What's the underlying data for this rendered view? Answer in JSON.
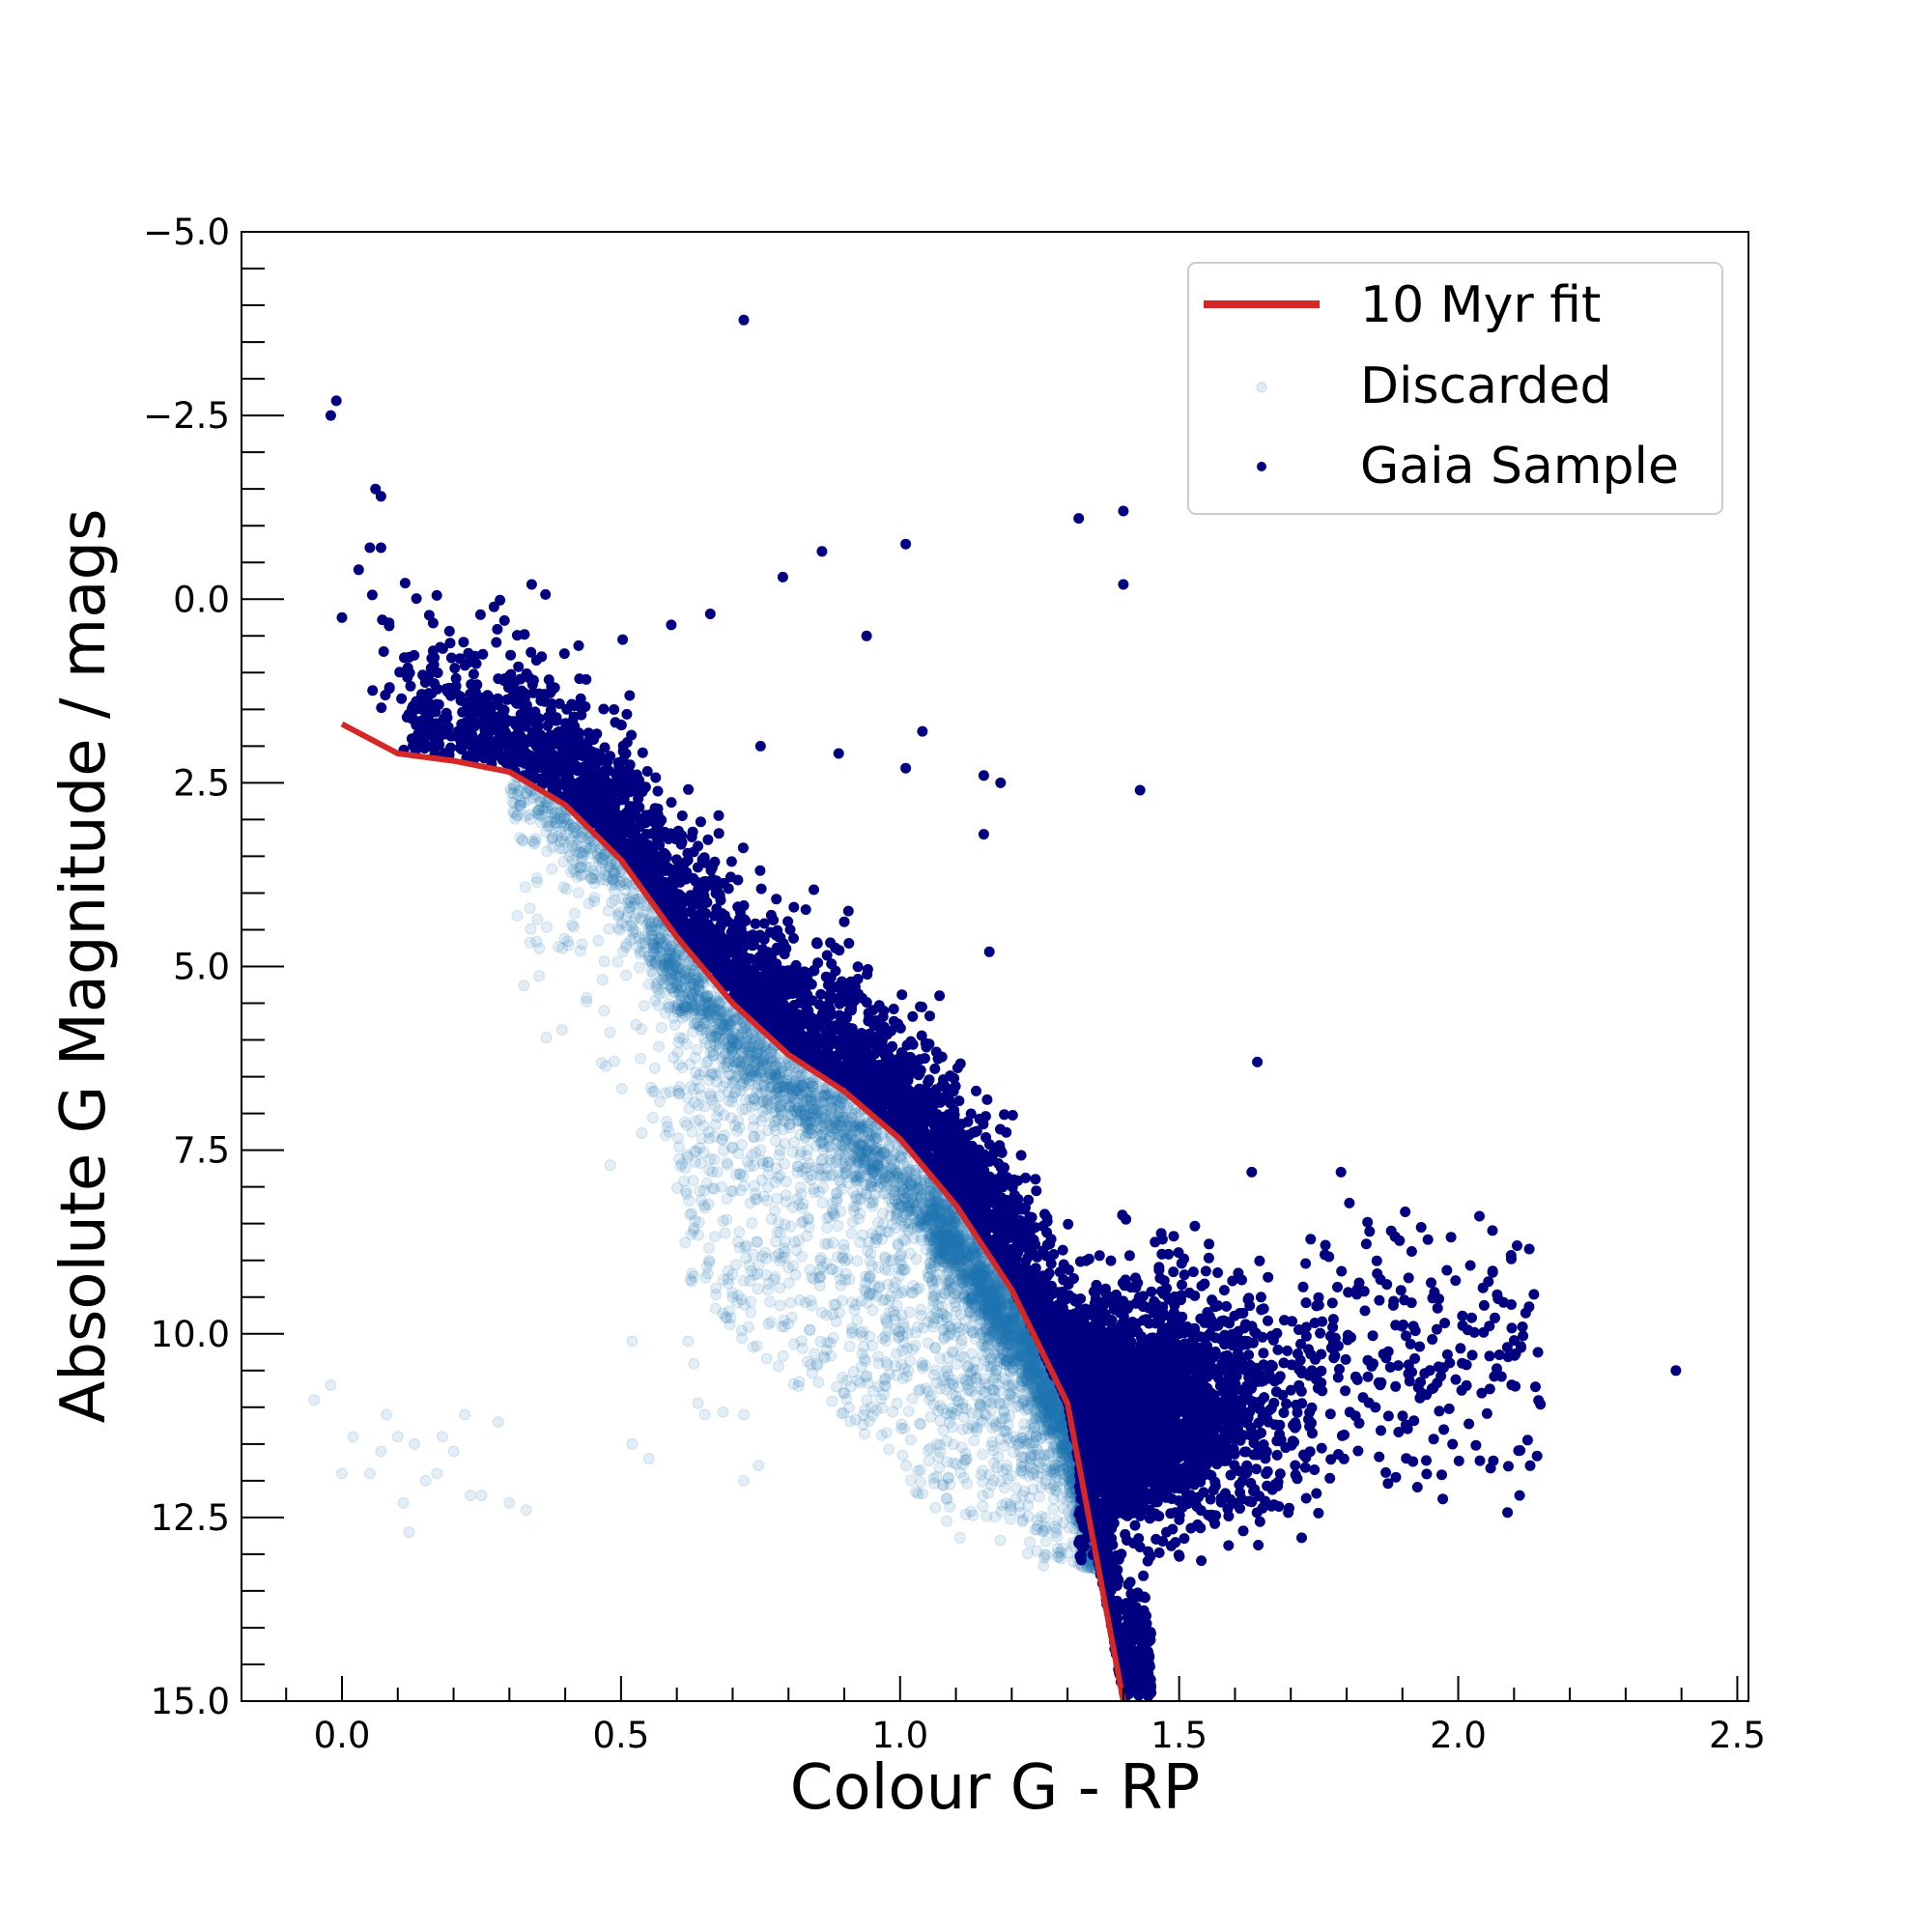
{
  "chart_data": {
    "type": "scatter",
    "title": "",
    "xlabel": "Colour G - RP",
    "ylabel": "Absolute G Magnitude / mags",
    "xlim": [
      -0.18,
      2.52
    ],
    "ylim": [
      15.0,
      -5.0
    ],
    "y_inverted": true,
    "xticks": [
      0.0,
      0.5,
      1.0,
      1.5,
      2.0,
      2.5
    ],
    "xtick_labels": [
      "0.0",
      "0.5",
      "1.0",
      "1.5",
      "2.0",
      "2.5"
    ],
    "yticks": [
      -5.0,
      -2.5,
      0.0,
      2.5,
      5.0,
      7.5,
      10.0,
      12.5,
      15.0
    ],
    "ytick_labels": [
      "−5.0",
      "−2.5",
      "0.0",
      "2.5",
      "5.0",
      "7.5",
      "10.0",
      "12.5",
      "15.0"
    ],
    "x_minor_step": 0.1,
    "y_minor_step": 0.5,
    "grid": false,
    "legend_position": "top-right",
    "series": [
      {
        "name": "10 Myr fit",
        "kind": "line",
        "color": "#d62728",
        "x": [
          0.0,
          0.1,
          0.2,
          0.3,
          0.4,
          0.5,
          0.6,
          0.7,
          0.8,
          0.9,
          1.0,
          1.1,
          1.2,
          1.3,
          1.4
        ],
        "y": [
          1.7,
          2.1,
          2.2,
          2.35,
          2.8,
          3.55,
          4.6,
          5.5,
          6.2,
          6.7,
          7.35,
          8.25,
          9.4,
          10.95,
          15.0
        ]
      },
      {
        "name": "Discarded",
        "kind": "scatter",
        "color": "#1f77b4",
        "opacity": 0.13,
        "sample_points": [
          [
            -0.05,
            10.9
          ],
          [
            -0.02,
            10.7
          ],
          [
            0.0,
            11.9
          ],
          [
            0.02,
            11.4
          ],
          [
            0.05,
            11.9
          ],
          [
            0.07,
            11.6
          ],
          [
            0.08,
            11.1
          ],
          [
            0.1,
            11.4
          ],
          [
            0.11,
            12.3
          ],
          [
            0.12,
            12.7
          ],
          [
            0.13,
            11.5
          ],
          [
            0.15,
            12.0
          ],
          [
            0.17,
            11.9
          ],
          [
            0.18,
            11.4
          ],
          [
            0.2,
            11.6
          ],
          [
            0.22,
            11.1
          ],
          [
            0.23,
            12.2
          ],
          [
            0.25,
            12.2
          ],
          [
            0.28,
            11.2
          ],
          [
            0.3,
            12.3
          ],
          [
            0.33,
            12.4
          ],
          [
            0.48,
            5.9
          ],
          [
            0.52,
            10.1
          ],
          [
            0.52,
            11.5
          ],
          [
            0.55,
            11.7
          ],
          [
            0.62,
            10.1
          ],
          [
            0.65,
            11.1
          ],
          [
            0.72,
            11.1
          ],
          [
            0.58,
            7.3
          ],
          [
            0.63,
            8.6
          ],
          [
            0.68,
            8.0
          ],
          [
            0.7,
            9.5
          ],
          [
            0.72,
            12.0
          ],
          [
            0.75,
            7.5
          ],
          [
            0.8,
            9.1
          ]
        ]
      },
      {
        "name": "Gaia Sample",
        "kind": "scatter",
        "color": "#000080",
        "opacity": 1.0,
        "sample_points": [
          [
            -0.02,
            -2.5
          ],
          [
            -0.01,
            -2.7
          ],
          [
            0.72,
            -3.8
          ],
          [
            0.06,
            -1.5
          ],
          [
            0.07,
            -1.4
          ],
          [
            0.03,
            -0.4
          ],
          [
            0.05,
            -0.7
          ],
          [
            0.07,
            -0.7
          ],
          [
            0.0,
            0.25
          ],
          [
            0.17,
            -0.05
          ],
          [
            0.34,
            -0.2
          ],
          [
            1.32,
            -1.1
          ],
          [
            1.4,
            -1.2
          ],
          [
            1.4,
            -0.2
          ],
          [
            1.43,
            2.6
          ],
          [
            1.01,
            -0.75
          ],
          [
            0.86,
            -0.65
          ],
          [
            0.79,
            -0.3
          ],
          [
            0.94,
            0.5
          ],
          [
            0.59,
            0.35
          ],
          [
            0.66,
            0.2
          ],
          [
            0.75,
            2.0
          ],
          [
            0.89,
            2.1
          ],
          [
            1.04,
            1.8
          ],
          [
            1.01,
            2.3
          ],
          [
            1.15,
            2.4
          ],
          [
            1.18,
            2.5
          ],
          [
            1.15,
            3.2
          ],
          [
            1.16,
            4.8
          ],
          [
            1.64,
            6.3
          ],
          [
            1.79,
            7.8
          ],
          [
            1.63,
            7.8
          ],
          [
            1.88,
            8.6
          ],
          [
            2.39,
            10.5
          ],
          [
            2.11,
            12.2
          ]
        ]
      }
    ],
    "legend": [
      "10 Myr fit",
      "Discarded",
      "Gaia Sample"
    ]
  }
}
